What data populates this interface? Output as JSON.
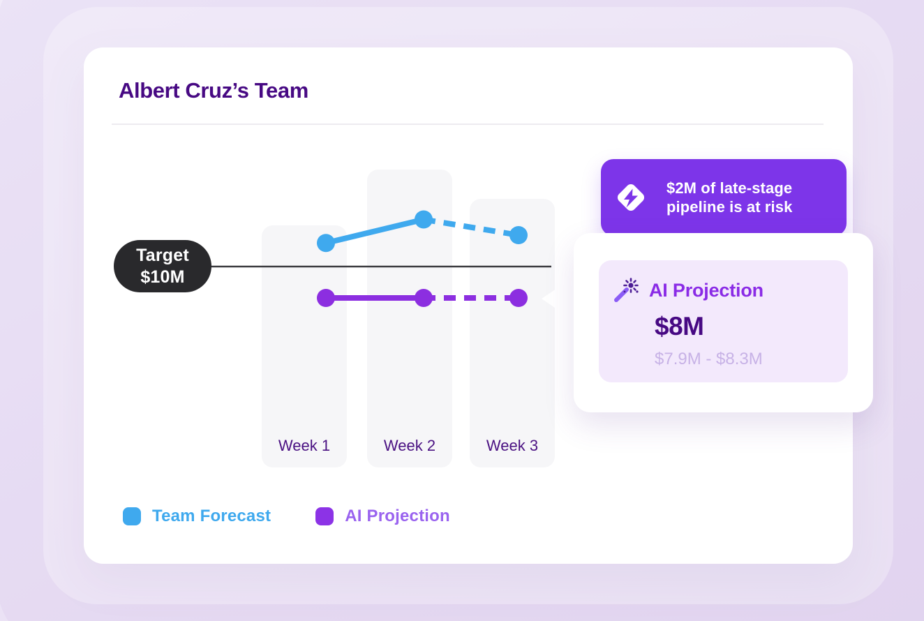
{
  "card": {
    "title": "Albert Cruz’s Team"
  },
  "alert_banner": {
    "icon": "bolt-diamond-icon",
    "text": "$2M of late-stage pipeline is at risk",
    "bg_color": "#7D35E9"
  },
  "ai_tooltip": {
    "icon": "magic-wand-icon",
    "title": "AI Projection",
    "value": "$8M",
    "range": "$7.9M - $8.3M"
  },
  "target_pill": {
    "label": "Target",
    "value": "$10M"
  },
  "legend": {
    "items": [
      {
        "label": "Team Forecast",
        "color": "#3FA9EE"
      },
      {
        "label": "AI Projection",
        "color": "#8C33E6"
      }
    ]
  },
  "chart_data": {
    "type": "line",
    "categories": [
      "Week 1",
      "Week 2",
      "Week 3"
    ],
    "unit": "$M",
    "series": [
      {
        "name": "Team Forecast",
        "color": "#3FA9EE",
        "values": [
          11.5,
          13,
          12
        ],
        "dashed_from_index": 1
      },
      {
        "name": "AI Projection",
        "color": "#8C2EE0",
        "values": [
          8,
          8,
          8
        ],
        "dashed_from_index": 1,
        "week3_range": [
          7.9,
          8.3
        ]
      }
    ],
    "target": {
      "label": "Target",
      "value": 10,
      "value_label": "$10M"
    },
    "y_axis_shown": false,
    "grid": false,
    "legend_position": "bottom-left"
  }
}
